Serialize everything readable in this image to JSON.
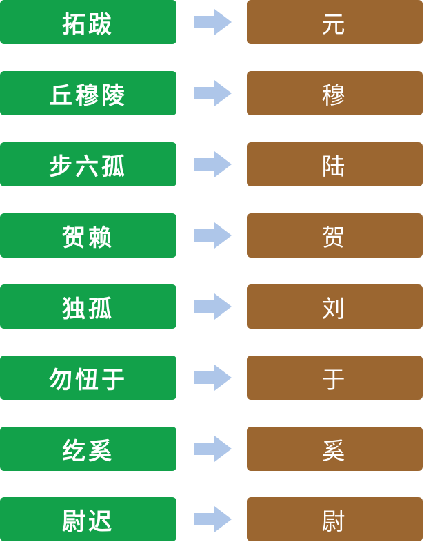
{
  "colors": {
    "source_box": "#12a14a",
    "target_box": "#9b6630",
    "arrow": "#aec6e9",
    "text": "#ffffff"
  },
  "arrow_icon": "right-arrow-icon",
  "rows": [
    {
      "source": "拓跋",
      "target": "元"
    },
    {
      "source": "丘穆陵",
      "target": "穆"
    },
    {
      "source": "步六孤",
      "target": "陆"
    },
    {
      "source": "贺赖",
      "target": "贺"
    },
    {
      "source": "独孤",
      "target": "刘"
    },
    {
      "source": "勿忸于",
      "target": "于"
    },
    {
      "source": "纥奚",
      "target": "奚"
    },
    {
      "source": "尉迟",
      "target": "尉"
    }
  ]
}
